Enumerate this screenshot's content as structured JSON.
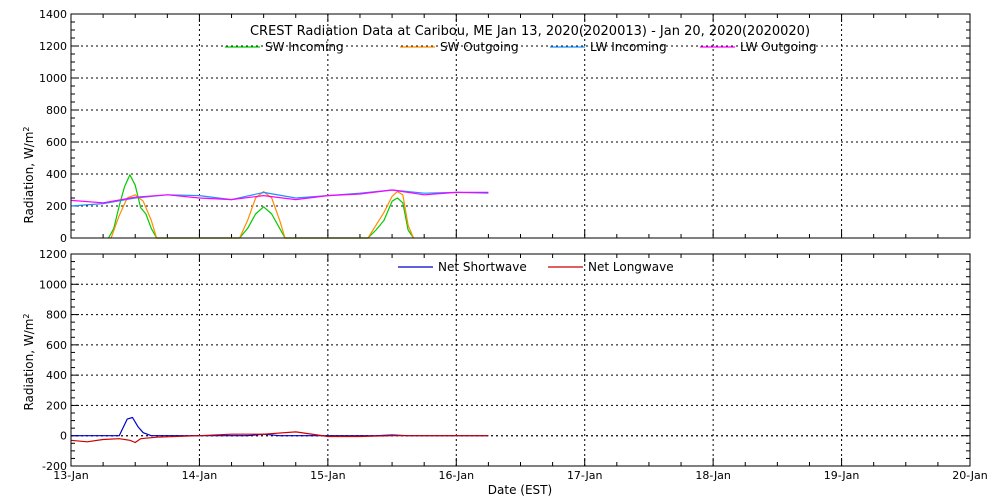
{
  "chart_data": [
    {
      "type": "line",
      "title": "CREST Radiation Data at Caribou, ME   Jan 13, 2020(2020013) - Jan 20, 2020(2020020)",
      "xlabel": "",
      "ylabel": "Radiation, W/m^2",
      "xlim": [
        "2020-01-13",
        "2020-01-20"
      ],
      "ylim": [
        0,
        1400
      ],
      "yticks": [
        0,
        200,
        400,
        600,
        800,
        1000,
        1200,
        1400
      ],
      "grid": true,
      "legend": "top-center",
      "series": [
        {
          "name": "SW Incoming",
          "color": "#00cc00",
          "x": [
            "2020-01-13 07:00",
            "2020-01-13 08:00",
            "2020-01-13 09:00",
            "2020-01-13 10:00",
            "2020-01-13 11:00",
            "2020-01-13 12:00",
            "2020-01-13 13:00",
            "2020-01-13 14:00",
            "2020-01-13 15:00",
            "2020-01-13 16:00",
            "2020-01-14 07:30",
            "2020-01-14 09:00",
            "2020-01-14 10:30",
            "2020-01-14 12:00",
            "2020-01-14 13:30",
            "2020-01-14 15:00",
            "2020-01-14 16:00",
            "2020-01-15 07:30",
            "2020-01-15 09:00",
            "2020-01-15 10:30",
            "2020-01-15 12:00",
            "2020-01-15 13:00",
            "2020-01-15 14:00",
            "2020-01-15 15:00",
            "2020-01-15 16:00"
          ],
          "y": [
            0,
            60,
            200,
            320,
            395,
            330,
            190,
            150,
            60,
            0,
            0,
            60,
            150,
            195,
            150,
            60,
            0,
            0,
            50,
            110,
            230,
            250,
            220,
            50,
            0
          ]
        },
        {
          "name": "SW Outgoing",
          "color": "#ff8c00",
          "x": [
            "2020-01-13 07:30",
            "2020-01-13 09:00",
            "2020-01-13 10:30",
            "2020-01-13 12:00",
            "2020-01-13 13:30",
            "2020-01-13 15:00",
            "2020-01-13 16:00",
            "2020-01-14 07:30",
            "2020-01-14 09:00",
            "2020-01-14 10:30",
            "2020-01-14 12:00",
            "2020-01-14 13:30",
            "2020-01-14 15:00",
            "2020-01-14 16:00",
            "2020-01-15 07:30",
            "2020-01-15 09:00",
            "2020-01-15 10:30",
            "2020-01-15 12:00",
            "2020-01-15 13:00",
            "2020-01-15 14:00",
            "2020-01-15 15:00",
            "2020-01-15 16:00"
          ],
          "y": [
            0,
            140,
            250,
            270,
            230,
            110,
            0,
            0,
            110,
            250,
            290,
            250,
            110,
            0,
            0,
            80,
            160,
            260,
            290,
            270,
            80,
            0
          ]
        },
        {
          "name": "LW Incoming",
          "color": "#1e90ff",
          "x": [
            "2020-01-13 00:00",
            "2020-01-13 06:00",
            "2020-01-13 12:00",
            "2020-01-13 18:00",
            "2020-01-14 00:00",
            "2020-01-14 06:00",
            "2020-01-14 12:00",
            "2020-01-14 18:00",
            "2020-01-15 00:00",
            "2020-01-15 06:00",
            "2020-01-15 12:00",
            "2020-01-15 18:00",
            "2020-01-16 00:00",
            "2020-01-16 06:00"
          ],
          "y": [
            200,
            215,
            250,
            270,
            265,
            240,
            285,
            250,
            265,
            280,
            300,
            280,
            285,
            280
          ]
        },
        {
          "name": "LW Outgoing",
          "color": "#ff00ff",
          "x": [
            "2020-01-13 00:00",
            "2020-01-13 06:00",
            "2020-01-13 12:00",
            "2020-01-13 18:00",
            "2020-01-14 00:00",
            "2020-01-14 06:00",
            "2020-01-14 12:00",
            "2020-01-14 18:00",
            "2020-01-15 00:00",
            "2020-01-15 06:00",
            "2020-01-15 12:00",
            "2020-01-15 18:00",
            "2020-01-16 00:00",
            "2020-01-16 06:00"
          ],
          "y": [
            235,
            220,
            255,
            270,
            250,
            240,
            265,
            240,
            265,
            275,
            300,
            270,
            285,
            285
          ]
        }
      ]
    },
    {
      "type": "line",
      "title": "",
      "xlabel": "Date (EST)",
      "ylabel": "Radiation, W/m^2",
      "xlim": [
        "2020-01-13",
        "2020-01-20"
      ],
      "xticks": [
        "13-Jan",
        "14-Jan",
        "15-Jan",
        "16-Jan",
        "17-Jan",
        "18-Jan",
        "19-Jan",
        "20-Jan"
      ],
      "ylim": [
        -200,
        1200
      ],
      "yticks": [
        -200,
        0,
        200,
        400,
        600,
        800,
        1000,
        1200
      ],
      "grid": true,
      "legend": "top-center",
      "series": [
        {
          "name": "Net Shortwave",
          "color": "#0000cc",
          "x": [
            "2020-01-13 00:00",
            "2020-01-13 09:00",
            "2020-01-13 10:30",
            "2020-01-13 11:30",
            "2020-01-13 12:30",
            "2020-01-13 13:30",
            "2020-01-13 15:00",
            "2020-01-13 17:00",
            "2020-01-14 09:00",
            "2020-01-14 12:00",
            "2020-01-14 15:00",
            "2020-01-15 09:00",
            "2020-01-15 12:00",
            "2020-01-15 15:00",
            "2020-01-16 06:00"
          ],
          "y": [
            0,
            0,
            110,
            120,
            60,
            20,
            0,
            0,
            0,
            10,
            0,
            0,
            5,
            0,
            0
          ]
        },
        {
          "name": "Net Longwave",
          "color": "#cc0000",
          "x": [
            "2020-01-13 00:00",
            "2020-01-13 03:00",
            "2020-01-13 06:00",
            "2020-01-13 09:00",
            "2020-01-13 11:00",
            "2020-01-13 12:00",
            "2020-01-13 13:00",
            "2020-01-13 16:00",
            "2020-01-14 00:00",
            "2020-01-14 06:00",
            "2020-01-14 12:00",
            "2020-01-14 18:00",
            "2020-01-15 00:00",
            "2020-01-15 06:00",
            "2020-01-15 12:00",
            "2020-01-15 18:00",
            "2020-01-16 00:00",
            "2020-01-16 06:00"
          ],
          "y": [
            -30,
            -40,
            -25,
            -20,
            -30,
            -45,
            -20,
            -10,
            0,
            10,
            10,
            25,
            -5,
            -5,
            0,
            0,
            0,
            0
          ]
        }
      ]
    }
  ]
}
